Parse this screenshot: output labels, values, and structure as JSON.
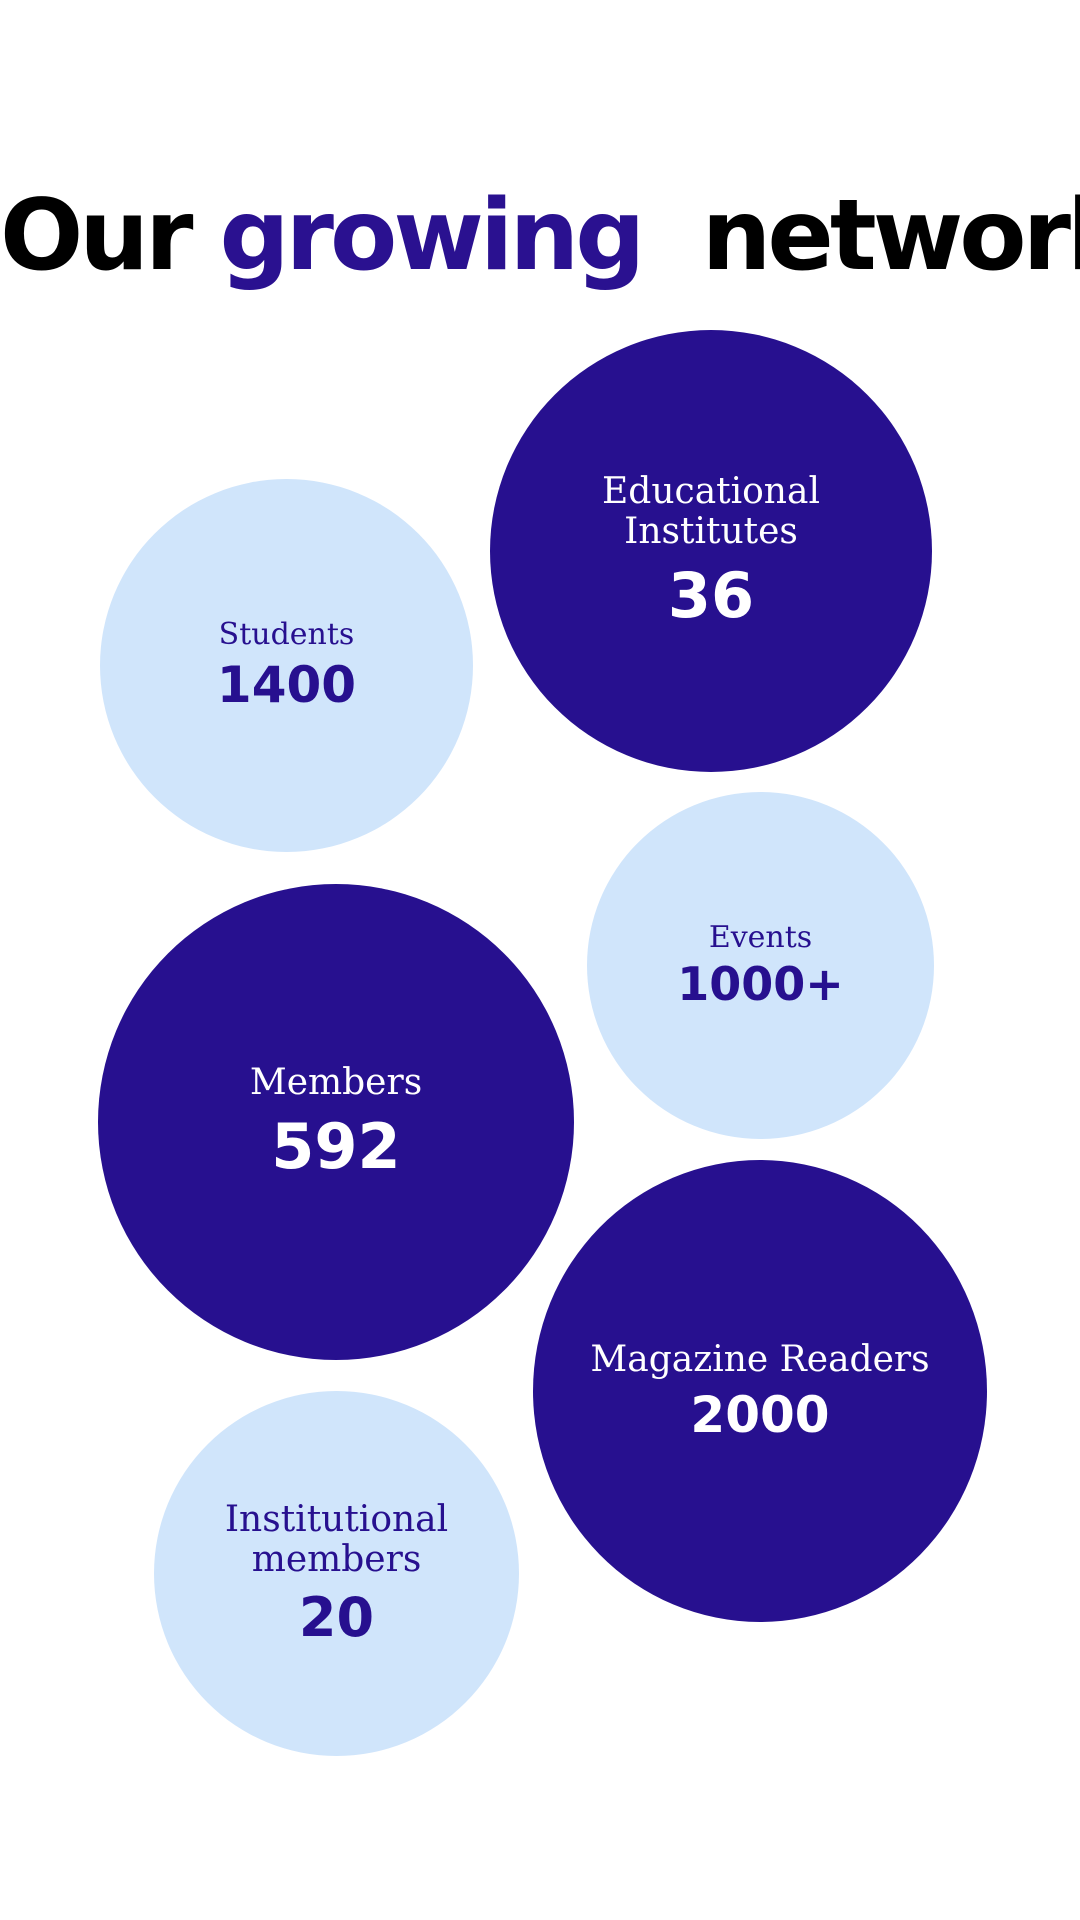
{
  "title": {
    "part1": "Our ",
    "accent": "growing",
    "part2": "  network"
  },
  "colors": {
    "dark_bubble": "#27108f",
    "light_bubble": "#d0e5fb",
    "accent": "#2a1190"
  },
  "stats": [
    {
      "label": "Educational Institutes",
      "value": "36",
      "style": "dark"
    },
    {
      "label": "Students",
      "value": "1400",
      "style": "light"
    },
    {
      "label": "Events",
      "value": "1000+",
      "style": "light"
    },
    {
      "label": "Members",
      "value": "592",
      "style": "dark"
    },
    {
      "label": "Magazine Readers",
      "value": "2000",
      "style": "dark"
    },
    {
      "label": "Institutional members",
      "value": "20",
      "style": "light"
    }
  ],
  "label_lines": {
    "educational": [
      "Educational",
      "Institutes"
    ],
    "institutional": [
      "Institutional",
      "members"
    ]
  }
}
